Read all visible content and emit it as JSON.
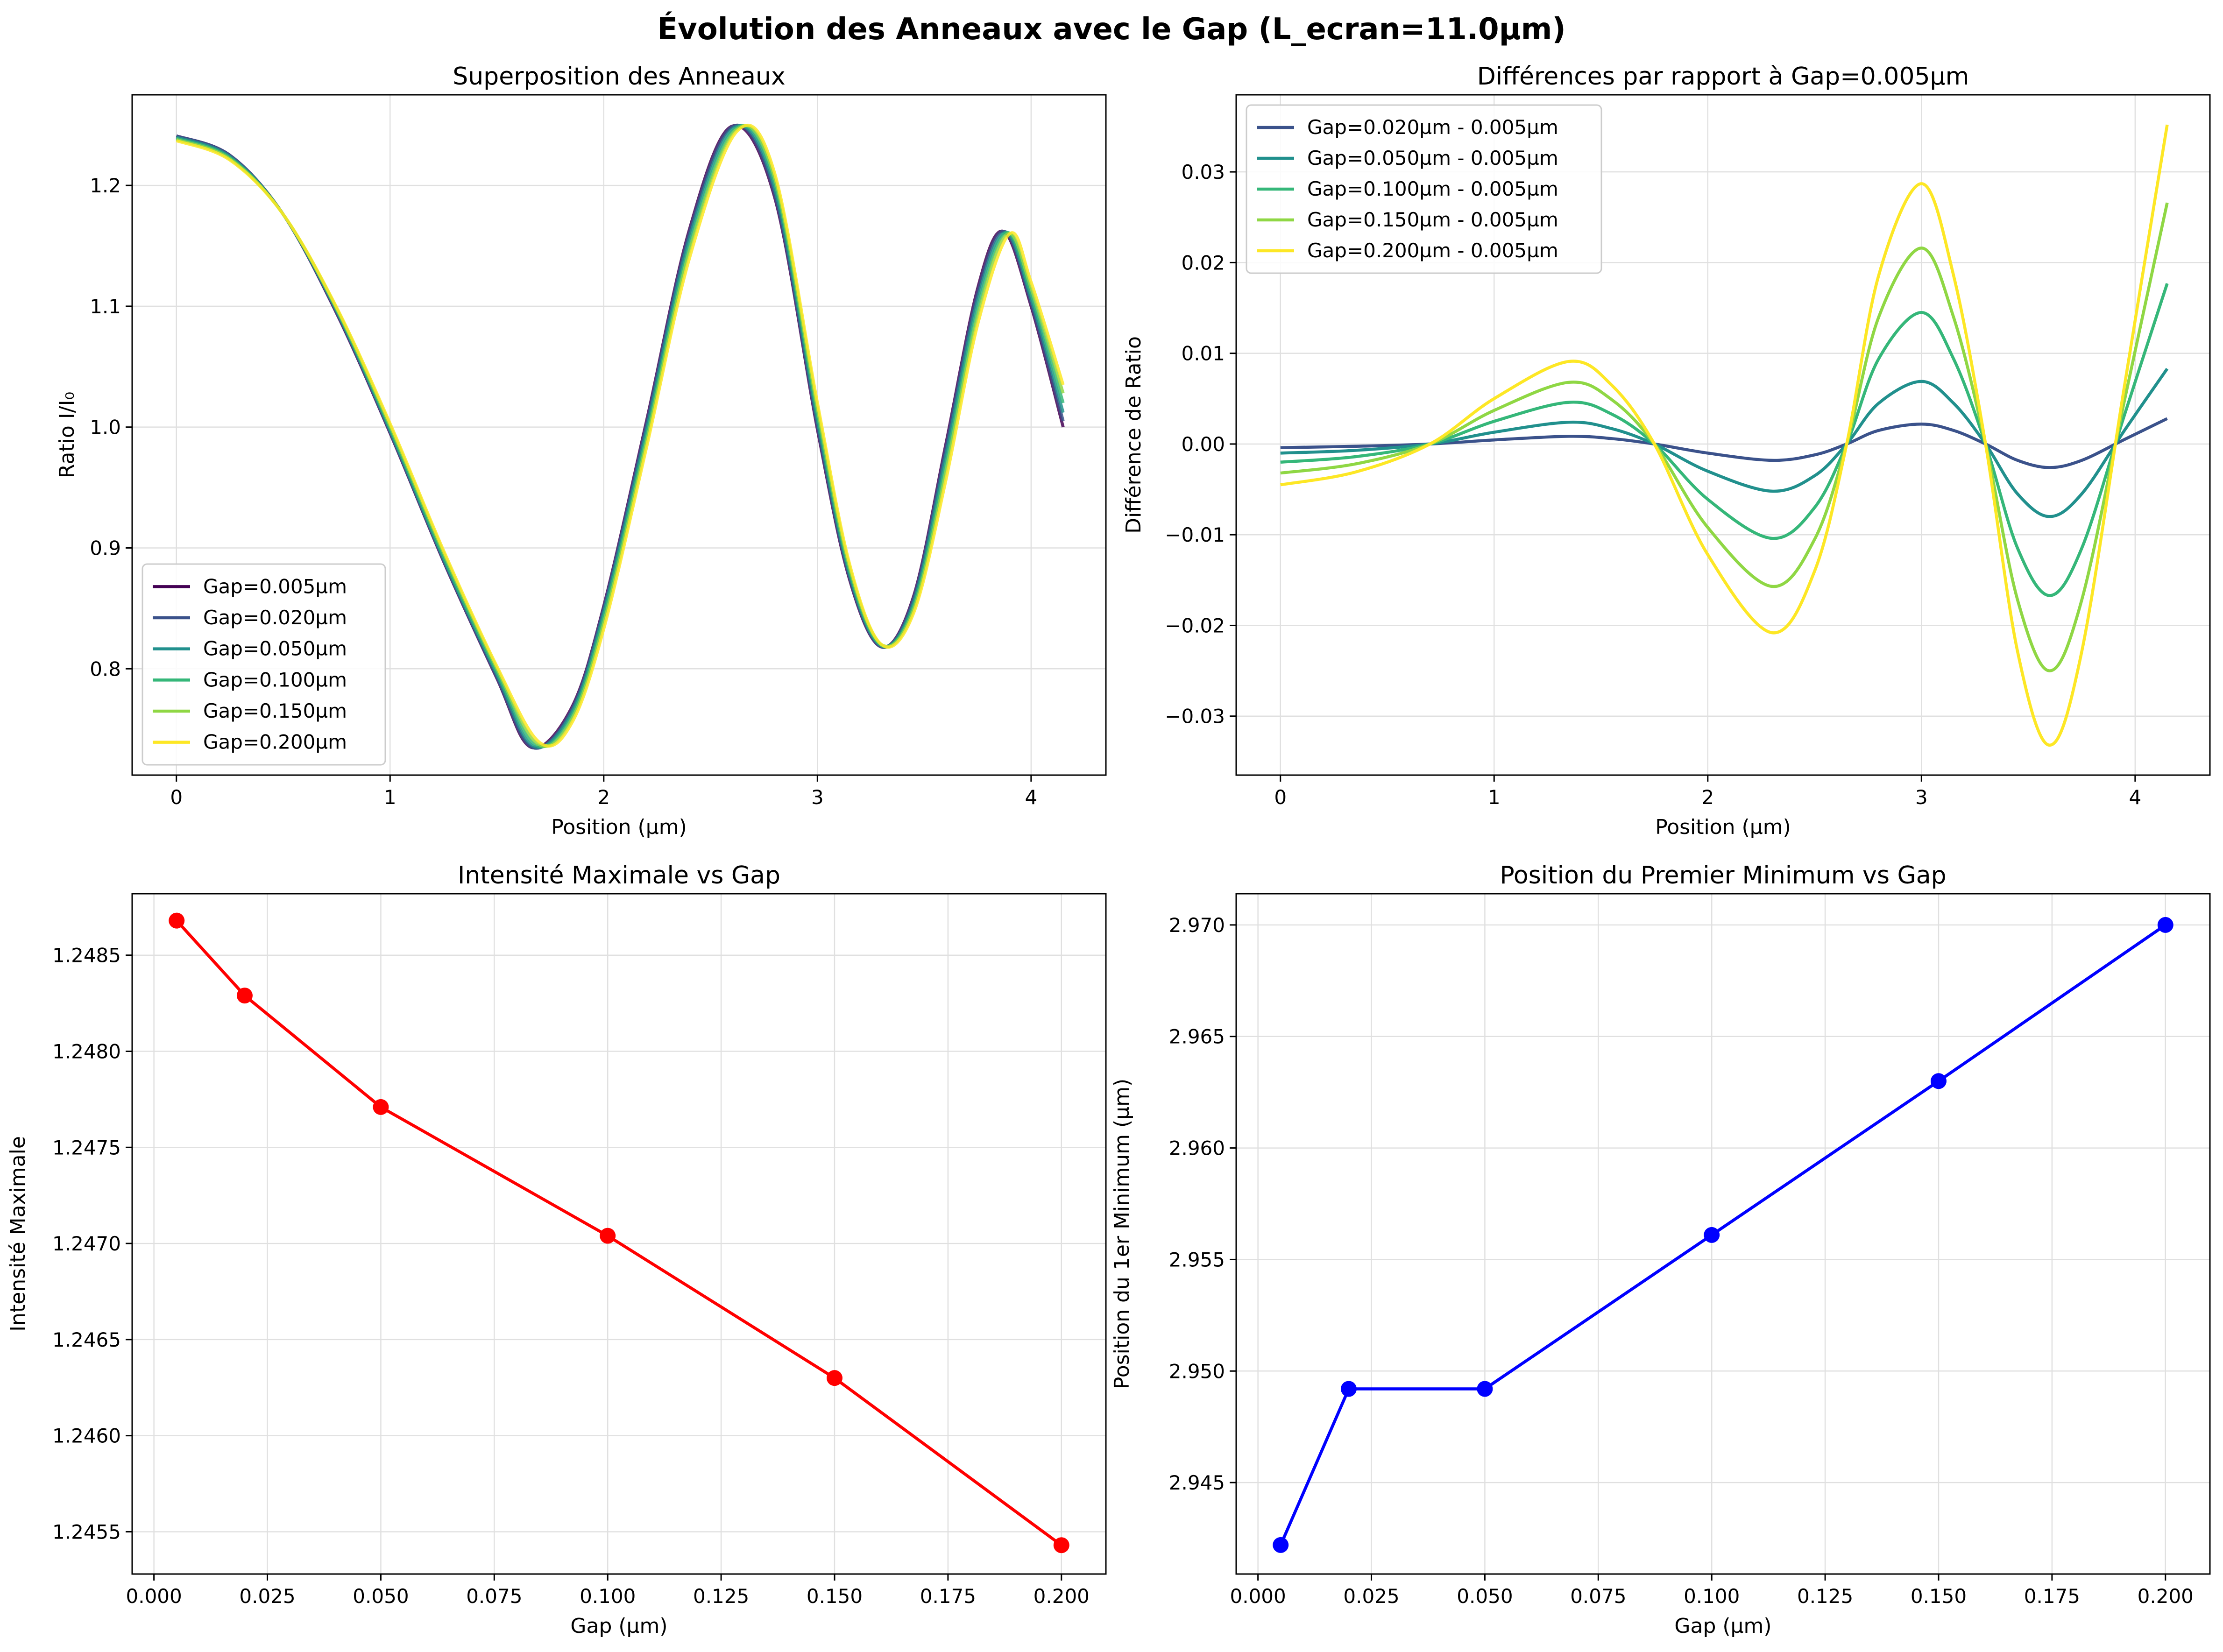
{
  "figure": {
    "suptitle": "Évolution des Anneaux avec le Gap (L_ecran=11.0µm)"
  },
  "chart_data": [
    {
      "id": "rings",
      "type": "line",
      "title": "Superposition des Anneaux",
      "xlabel": "Position (µm)",
      "ylabel": "Ratio I/I₀",
      "xlim": [
        -0.207,
        4.35
      ],
      "ylim": [
        0.712,
        1.275
      ],
      "xticks": [
        0,
        1,
        2,
        3,
        4
      ],
      "xtick_labels": [
        "0",
        "1",
        "2",
        "3",
        "4"
      ],
      "yticks": [
        0.8,
        0.9,
        1.0,
        1.1,
        1.2
      ],
      "ytick_labels": [
        "0.8",
        "0.9",
        "1.0",
        "1.1",
        "1.2"
      ],
      "grid": true,
      "legend_position": "lower-left",
      "series": [
        {
          "name": "Gap=0.005µm",
          "color": "#440154",
          "x": [
            0,
            0.25,
            0.5,
            0.75,
            1.0,
            1.25,
            1.5,
            1.66,
            1.85,
            2.0,
            2.2,
            2.4,
            2.6,
            2.8,
            3.0,
            3.15,
            3.3,
            3.45,
            3.6,
            3.75,
            3.87,
            4.0,
            4.15
          ],
          "y": [
            1.241,
            1.225,
            1.176,
            1.094,
            0.995,
            0.889,
            0.792,
            0.735,
            0.768,
            0.852,
            1.005,
            1.163,
            1.249,
            1.19,
            0.998,
            0.874,
            0.818,
            0.86,
            0.985,
            1.115,
            1.162,
            1.1,
            1.0
          ]
        },
        {
          "name": "Gap=0.020µm",
          "color": "#3b528b",
          "x": [
            0,
            0.25,
            0.5,
            0.75,
            1.0,
            1.25,
            1.5,
            1.665,
            1.85,
            2.0,
            2.2,
            2.4,
            2.605,
            2.8,
            3.0,
            3.15,
            3.3,
            3.45,
            3.6,
            3.75,
            3.875,
            4.0,
            4.15
          ],
          "y": [
            1.241,
            1.225,
            1.176,
            1.095,
            0.996,
            0.89,
            0.793,
            0.735,
            0.766,
            0.85,
            1.002,
            1.16,
            1.249,
            1.193,
            1.001,
            0.876,
            0.818,
            0.858,
            0.981,
            1.111,
            1.162,
            1.103,
            1.005
          ]
        },
        {
          "name": "Gap=0.050µm",
          "color": "#21908d",
          "x": [
            0,
            0.25,
            0.5,
            0.75,
            1.0,
            1.25,
            1.5,
            1.67,
            1.85,
            2.0,
            2.2,
            2.4,
            2.61,
            2.8,
            3.0,
            3.15,
            3.3,
            3.45,
            3.6,
            3.75,
            3.88,
            4.0,
            4.15
          ],
          "y": [
            1.24,
            1.224,
            1.176,
            1.096,
            0.997,
            0.891,
            0.795,
            0.736,
            0.764,
            0.847,
            0.998,
            1.156,
            1.248,
            1.197,
            1.005,
            0.878,
            0.819,
            0.855,
            0.976,
            1.106,
            1.161,
            1.106,
            1.012
          ]
        },
        {
          "name": "Gap=0.100µm",
          "color": "#35b779",
          "x": [
            0,
            0.25,
            0.5,
            0.75,
            1.0,
            1.25,
            1.5,
            1.68,
            1.85,
            2.0,
            2.2,
            2.4,
            2.615,
            2.8,
            3.0,
            3.15,
            3.3,
            3.45,
            3.6,
            3.75,
            3.885,
            4.0,
            4.15
          ],
          "y": [
            1.239,
            1.223,
            1.176,
            1.097,
            0.999,
            0.893,
            0.797,
            0.737,
            0.761,
            0.843,
            0.993,
            1.15,
            1.247,
            1.202,
            1.01,
            0.881,
            0.819,
            0.852,
            0.969,
            1.099,
            1.161,
            1.11,
            1.02
          ]
        },
        {
          "name": "Gap=0.150µm",
          "color": "#8fd744",
          "x": [
            0,
            0.25,
            0.5,
            0.75,
            1.0,
            1.25,
            1.5,
            1.69,
            1.85,
            2.0,
            2.2,
            2.4,
            2.62,
            2.8,
            3.0,
            3.15,
            3.3,
            3.45,
            3.6,
            3.75,
            3.89,
            4.0,
            4.15
          ],
          "y": [
            1.238,
            1.222,
            1.176,
            1.098,
            1.001,
            0.896,
            0.8,
            0.738,
            0.758,
            0.838,
            0.988,
            1.145,
            1.246,
            1.206,
            1.015,
            0.884,
            0.82,
            0.849,
            0.962,
            1.092,
            1.16,
            1.115,
            1.028
          ]
        },
        {
          "name": "Gap=0.200µm",
          "color": "#fde725",
          "x": [
            0,
            0.25,
            0.5,
            0.75,
            1.0,
            1.25,
            1.5,
            1.7,
            1.85,
            2.0,
            2.2,
            2.4,
            2.625,
            2.8,
            3.0,
            3.15,
            3.3,
            3.45,
            3.6,
            3.75,
            3.9,
            4.0,
            4.15
          ],
          "y": [
            1.237,
            1.221,
            1.176,
            1.099,
            1.003,
            0.898,
            0.802,
            0.739,
            0.755,
            0.833,
            0.983,
            1.139,
            1.245,
            1.21,
            1.02,
            0.887,
            0.82,
            0.846,
            0.955,
            1.085,
            1.16,
            1.12,
            1.035
          ]
        }
      ]
    },
    {
      "id": "diffs",
      "type": "line",
      "title": "Différences par rapport à Gap=0.005µm",
      "xlabel": "Position (µm)",
      "ylabel": "Différence de Ratio",
      "xlim": [
        -0.207,
        4.35
      ],
      "ylim": [
        -0.0365,
        0.0385
      ],
      "xticks": [
        0,
        1,
        2,
        3,
        4
      ],
      "xtick_labels": [
        "0",
        "1",
        "2",
        "3",
        "4"
      ],
      "yticks": [
        -0.03,
        -0.02,
        -0.01,
        0.0,
        0.01,
        0.02,
        0.03
      ],
      "ytick_labels": [
        "−0.03",
        "−0.02",
        "−0.01",
        "0.00",
        "0.01",
        "0.02",
        "0.03"
      ],
      "grid": true,
      "legend_position": "upper-left",
      "series": [
        {
          "name": "Gap=0.020µm - 0.005µm",
          "color": "#3b528b",
          "x": [
            0,
            0.35,
            0.7,
            1.0,
            1.35,
            1.55,
            1.75,
            2.0,
            2.3,
            2.5,
            2.65,
            2.8,
            3.0,
            3.15,
            3.3,
            3.45,
            3.6,
            3.75,
            3.95,
            4.15
          ],
          "y": [
            -0.0004,
            -0.00025,
            0.0,
            0.00045,
            0.00085,
            0.0006,
            0.0,
            -0.001,
            -0.0018,
            -0.0012,
            0.0,
            0.0015,
            0.0022,
            0.0015,
            0.0,
            -0.0018,
            -0.0026,
            -0.0018,
            0.0005,
            0.0028
          ]
        },
        {
          "name": "Gap=0.050µm - 0.005µm",
          "color": "#21908d",
          "x": [
            0,
            0.35,
            0.7,
            1.0,
            1.35,
            1.55,
            1.75,
            2.0,
            2.3,
            2.5,
            2.65,
            2.8,
            3.0,
            3.15,
            3.3,
            3.45,
            3.6,
            3.75,
            3.95,
            4.15
          ],
          "y": [
            -0.001,
            -0.0007,
            0.0,
            0.0013,
            0.0024,
            0.0017,
            0.0,
            -0.003,
            -0.0052,
            -0.0035,
            0.0,
            0.0045,
            0.0069,
            0.0045,
            0.0,
            -0.0055,
            -0.008,
            -0.0055,
            0.0015,
            0.0083
          ]
        },
        {
          "name": "Gap=0.100µm - 0.005µm",
          "color": "#35b779",
          "x": [
            0,
            0.35,
            0.7,
            1.0,
            1.35,
            1.55,
            1.75,
            2.0,
            2.3,
            2.5,
            2.65,
            2.8,
            3.0,
            3.15,
            3.3,
            3.45,
            3.6,
            3.75,
            3.95,
            4.15
          ],
          "y": [
            -0.002,
            -0.0014,
            0.0,
            0.0025,
            0.0046,
            0.0033,
            0.0,
            -0.0061,
            -0.0104,
            -0.007,
            0.0,
            0.0094,
            0.0145,
            0.0094,
            0.0,
            -0.0115,
            -0.0167,
            -0.0115,
            0.0032,
            0.0177
          ]
        },
        {
          "name": "Gap=0.150µm - 0.005µm",
          "color": "#8fd744",
          "x": [
            0,
            0.35,
            0.7,
            1.0,
            1.35,
            1.55,
            1.75,
            2.0,
            2.3,
            2.5,
            2.65,
            2.8,
            3.0,
            3.15,
            3.3,
            3.45,
            3.6,
            3.75,
            3.95,
            4.15
          ],
          "y": [
            -0.0032,
            -0.0022,
            0.0,
            0.0037,
            0.0068,
            0.0049,
            0.0,
            -0.0092,
            -0.0157,
            -0.0105,
            0.0,
            0.014,
            0.0216,
            0.014,
            0.0,
            -0.0172,
            -0.025,
            -0.0172,
            0.0048,
            0.0266
          ]
        },
        {
          "name": "Gap=0.200µm - 0.005µm",
          "color": "#fde725",
          "x": [
            0,
            0.35,
            0.7,
            1.0,
            1.35,
            1.55,
            1.75,
            2.0,
            2.3,
            2.5,
            2.65,
            2.8,
            3.0,
            3.15,
            3.3,
            3.45,
            3.6,
            3.75,
            3.95,
            4.15
          ],
          "y": [
            -0.0045,
            -0.0031,
            0.0,
            0.005,
            0.0091,
            0.0065,
            0.0,
            -0.0122,
            -0.0208,
            -0.014,
            0.0,
            0.0186,
            0.0287,
            0.0186,
            0.0,
            -0.0229,
            -0.0332,
            -0.0229,
            0.0064,
            0.0352
          ]
        }
      ]
    },
    {
      "id": "imax",
      "type": "line",
      "title": "Intensité Maximale vs Gap",
      "xlabel": "Gap (µm)",
      "ylabel": "Intensité Maximale",
      "xlim": [
        -0.0048,
        0.2098
      ],
      "ylim": [
        1.24528,
        1.24882
      ],
      "xticks": [
        0.0,
        0.025,
        0.05,
        0.075,
        0.1,
        0.125,
        0.15,
        0.175,
        0.2
      ],
      "xtick_labels": [
        "0.000",
        "0.025",
        "0.050",
        "0.075",
        "0.100",
        "0.125",
        "0.150",
        "0.175",
        "0.200"
      ],
      "yticks": [
        1.2455,
        1.246,
        1.2465,
        1.247,
        1.2475,
        1.248,
        1.2485
      ],
      "ytick_labels": [
        "1.2455",
        "1.2460",
        "1.2465",
        "1.2470",
        "1.2475",
        "1.2480",
        "1.2485"
      ],
      "grid": true,
      "series": [
        {
          "name": "",
          "color": "#ff0000",
          "marker": "circle",
          "x": [
            0.005,
            0.02,
            0.05,
            0.1,
            0.15,
            0.2
          ],
          "y": [
            1.24868,
            1.24829,
            1.24771,
            1.24704,
            1.2463,
            1.24543
          ]
        }
      ]
    },
    {
      "id": "minpos",
      "type": "line",
      "title": "Position du Premier Minimum vs Gap",
      "xlabel": "Gap (µm)",
      "ylabel": "Position du 1er Minimum (µm)",
      "xlim": [
        -0.0048,
        0.2098
      ],
      "ylim": [
        2.9409,
        2.9714
      ],
      "xticks": [
        0.0,
        0.025,
        0.05,
        0.075,
        0.1,
        0.125,
        0.15,
        0.175,
        0.2
      ],
      "xtick_labels": [
        "0.000",
        "0.025",
        "0.050",
        "0.075",
        "0.100",
        "0.125",
        "0.150",
        "0.175",
        "0.200"
      ],
      "yticks": [
        2.945,
        2.95,
        2.955,
        2.96,
        2.965,
        2.97
      ],
      "ytick_labels": [
        "2.945",
        "2.950",
        "2.955",
        "2.960",
        "2.965",
        "2.970"
      ],
      "grid": true,
      "series": [
        {
          "name": "",
          "color": "#0000ff",
          "marker": "circle",
          "x": [
            0.005,
            0.02,
            0.05,
            0.1,
            0.15,
            0.2
          ],
          "y": [
            2.9422,
            2.9492,
            2.9492,
            2.9561,
            2.963,
            2.97
          ]
        }
      ]
    }
  ]
}
